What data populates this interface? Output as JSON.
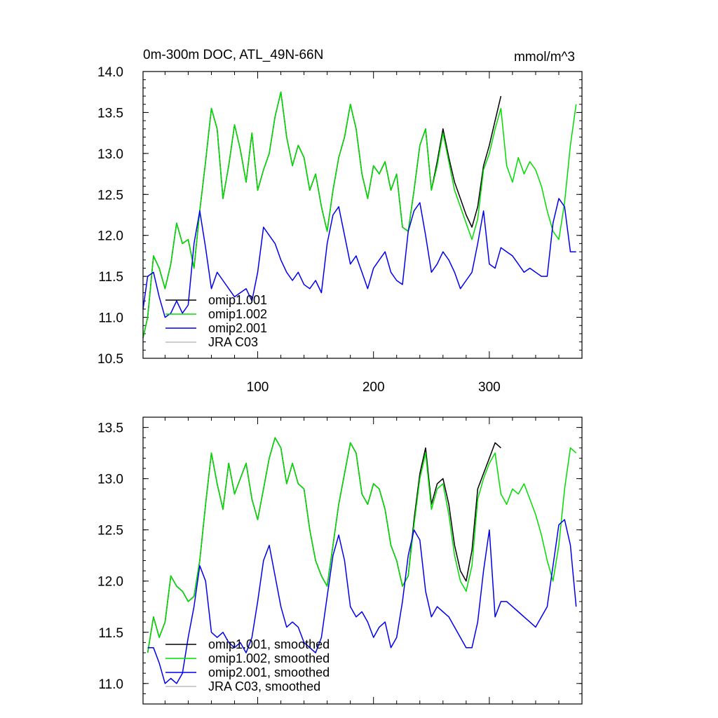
{
  "chart_data": [
    {
      "type": "line",
      "title_left": "0m-300m DOC, ATL_49N-66N",
      "title_right": "mmol/m^3",
      "xlim": [
        1,
        380
      ],
      "ylim": [
        10.5,
        14.0
      ],
      "x_tick_labels": [
        100,
        200,
        300
      ],
      "y_tick_labels": [
        "10.5",
        "11.0",
        "11.5",
        "12.0",
        "12.5",
        "13.0",
        "13.5",
        "14.0"
      ],
      "legend_position": "lower-left",
      "series": [
        {
          "name": "omip1.001",
          "color": "#000000",
          "x": [
            1,
            5,
            10,
            15,
            20,
            25,
            30,
            35,
            40,
            45,
            50,
            55,
            60,
            65,
            70,
            75,
            80,
            85,
            90,
            95,
            100,
            105,
            110,
            115,
            120,
            125,
            130,
            135,
            140,
            145,
            150,
            155,
            160,
            165,
            170,
            175,
            180,
            185,
            190,
            195,
            200,
            205,
            210,
            215,
            220,
            225,
            230,
            235,
            240,
            245,
            250,
            255,
            260,
            265,
            270,
            275,
            280,
            285,
            290,
            295,
            300,
            305,
            310
          ],
          "y": [
            10.75,
            11.0,
            11.75,
            11.6,
            11.35,
            11.65,
            12.15,
            11.9,
            11.95,
            11.6,
            12.3,
            12.9,
            13.55,
            13.3,
            12.45,
            12.85,
            13.35,
            13.05,
            12.65,
            13.25,
            12.55,
            12.8,
            13.0,
            13.45,
            13.75,
            13.2,
            12.85,
            13.1,
            12.95,
            12.55,
            12.75,
            12.35,
            12.05,
            12.55,
            12.95,
            13.2,
            13.6,
            13.3,
            12.75,
            12.45,
            12.85,
            12.75,
            12.9,
            12.55,
            12.75,
            12.1,
            12.05,
            12.55,
            13.1,
            13.3,
            12.55,
            12.9,
            13.3,
            12.95,
            12.65,
            12.45,
            12.25,
            12.1,
            12.35,
            12.85,
            13.1,
            13.4,
            13.7
          ]
        },
        {
          "name": "omip1.002",
          "color": "#00dd00",
          "x": [
            1,
            5,
            10,
            15,
            20,
            25,
            30,
            35,
            40,
            45,
            50,
            55,
            60,
            65,
            70,
            75,
            80,
            85,
            90,
            95,
            100,
            105,
            110,
            115,
            120,
            125,
            130,
            135,
            140,
            145,
            150,
            155,
            160,
            165,
            170,
            175,
            180,
            185,
            190,
            195,
            200,
            205,
            210,
            215,
            220,
            225,
            230,
            235,
            240,
            245,
            250,
            255,
            260,
            265,
            270,
            275,
            280,
            285,
            290,
            295,
            300,
            305,
            310,
            315,
            320,
            325,
            330,
            335,
            340,
            345,
            350,
            355,
            360,
            365,
            370,
            375
          ],
          "y": [
            10.75,
            11.0,
            11.75,
            11.6,
            11.35,
            11.65,
            12.15,
            11.9,
            11.95,
            11.6,
            12.3,
            12.9,
            13.55,
            13.3,
            12.45,
            12.85,
            13.35,
            13.05,
            12.65,
            13.25,
            12.55,
            12.8,
            13.0,
            13.45,
            13.75,
            13.2,
            12.85,
            13.1,
            12.95,
            12.55,
            12.75,
            12.35,
            12.05,
            12.55,
            12.95,
            13.2,
            13.6,
            13.3,
            12.75,
            12.45,
            12.85,
            12.75,
            12.9,
            12.55,
            12.75,
            12.1,
            12.05,
            12.55,
            13.1,
            13.3,
            12.55,
            12.85,
            13.25,
            12.9,
            12.55,
            12.35,
            12.15,
            11.95,
            12.2,
            12.8,
            13.0,
            13.3,
            13.55,
            12.85,
            12.65,
            12.95,
            12.75,
            12.9,
            12.8,
            12.6,
            12.3,
            12.05,
            11.95,
            12.4,
            13.1,
            13.6
          ]
        },
        {
          "name": "omip2.001",
          "color": "#0000ee",
          "x": [
            1,
            5,
            10,
            15,
            20,
            25,
            30,
            35,
            40,
            45,
            50,
            55,
            60,
            65,
            70,
            75,
            80,
            85,
            90,
            95,
            100,
            105,
            110,
            115,
            120,
            125,
            130,
            135,
            140,
            145,
            150,
            155,
            160,
            165,
            170,
            175,
            180,
            185,
            190,
            195,
            200,
            205,
            210,
            215,
            220,
            225,
            230,
            235,
            240,
            245,
            250,
            255,
            260,
            265,
            270,
            275,
            280,
            285,
            290,
            295,
            300,
            305,
            310,
            315,
            320,
            325,
            330,
            335,
            340,
            345,
            350,
            355,
            360,
            365,
            370,
            375
          ],
          "y": [
            11.1,
            11.5,
            11.55,
            11.25,
            11.0,
            11.05,
            11.2,
            11.05,
            11.15,
            11.9,
            12.3,
            11.85,
            11.35,
            11.55,
            11.45,
            11.35,
            11.25,
            11.3,
            11.35,
            11.2,
            11.55,
            12.1,
            12.0,
            11.9,
            11.7,
            11.55,
            11.45,
            11.55,
            11.4,
            11.35,
            11.45,
            11.3,
            11.9,
            12.25,
            12.35,
            12.0,
            11.65,
            11.75,
            11.55,
            11.35,
            11.6,
            11.7,
            11.8,
            11.55,
            11.45,
            11.4,
            12.05,
            12.3,
            12.4,
            12.0,
            11.55,
            11.65,
            11.8,
            11.7,
            11.55,
            11.35,
            11.45,
            11.55,
            11.9,
            12.3,
            11.65,
            11.6,
            11.85,
            11.8,
            11.75,
            11.65,
            11.55,
            11.6,
            11.55,
            11.5,
            11.5,
            12.15,
            12.45,
            12.35,
            11.8,
            11.8
          ]
        },
        {
          "name": "JRA C03",
          "color": "#bbbbbb",
          "x": [],
          "y": []
        }
      ]
    },
    {
      "type": "line",
      "xlim": [
        1,
        380
      ],
      "ylim": [
        10.8,
        13.6
      ],
      "y_tick_labels": [
        "11.0",
        "11.5",
        "12.0",
        "12.5",
        "13.0",
        "13.5"
      ],
      "legend_position": "lower-left",
      "series": [
        {
          "name": "omip1.001, smoothed",
          "color": "#000000",
          "x": [
            5,
            10,
            15,
            20,
            25,
            30,
            35,
            40,
            45,
            50,
            55,
            60,
            65,
            70,
            75,
            80,
            85,
            90,
            95,
            100,
            105,
            110,
            115,
            120,
            125,
            130,
            135,
            140,
            145,
            150,
            155,
            160,
            165,
            170,
            175,
            180,
            185,
            190,
            195,
            200,
            205,
            210,
            215,
            220,
            225,
            230,
            235,
            240,
            245,
            250,
            255,
            260,
            265,
            270,
            275,
            280,
            285,
            290,
            295,
            300,
            305,
            310
          ],
          "y": [
            11.3,
            11.65,
            11.45,
            11.6,
            12.05,
            11.95,
            11.9,
            11.8,
            11.85,
            12.2,
            12.75,
            13.25,
            12.95,
            12.7,
            13.15,
            12.85,
            13.0,
            13.15,
            12.8,
            12.6,
            12.9,
            13.2,
            13.4,
            13.3,
            12.95,
            13.15,
            12.95,
            12.9,
            12.5,
            12.2,
            12.05,
            11.95,
            12.35,
            12.75,
            13.05,
            13.35,
            13.25,
            12.85,
            12.75,
            12.95,
            12.9,
            12.7,
            12.35,
            12.2,
            11.95,
            12.05,
            12.6,
            13.05,
            13.3,
            12.75,
            12.95,
            13.0,
            12.75,
            12.35,
            12.1,
            12.0,
            12.3,
            12.9,
            13.05,
            13.2,
            13.35,
            13.3
          ]
        },
        {
          "name": "omip1.002, smoothed",
          "color": "#00dd00",
          "x": [
            5,
            10,
            15,
            20,
            25,
            30,
            35,
            40,
            45,
            50,
            55,
            60,
            65,
            70,
            75,
            80,
            85,
            90,
            95,
            100,
            105,
            110,
            115,
            120,
            125,
            130,
            135,
            140,
            145,
            150,
            155,
            160,
            165,
            170,
            175,
            180,
            185,
            190,
            195,
            200,
            205,
            210,
            215,
            220,
            225,
            230,
            235,
            240,
            245,
            250,
            255,
            260,
            265,
            270,
            275,
            280,
            285,
            290,
            295,
            300,
            305,
            310,
            315,
            320,
            325,
            330,
            335,
            340,
            345,
            350,
            355,
            360,
            365,
            370,
            375
          ],
          "y": [
            11.3,
            11.65,
            11.45,
            11.6,
            12.05,
            11.95,
            11.9,
            11.8,
            11.85,
            12.2,
            12.75,
            13.25,
            12.95,
            12.7,
            13.15,
            12.85,
            13.0,
            13.15,
            12.8,
            12.6,
            12.9,
            13.2,
            13.4,
            13.3,
            12.95,
            13.15,
            12.95,
            12.9,
            12.5,
            12.2,
            12.05,
            11.95,
            12.35,
            12.75,
            13.05,
            13.35,
            13.25,
            12.85,
            12.75,
            12.95,
            12.9,
            12.7,
            12.35,
            12.2,
            11.95,
            12.05,
            12.55,
            13.0,
            13.25,
            12.7,
            12.9,
            12.95,
            12.65,
            12.25,
            12.0,
            11.9,
            12.15,
            12.8,
            13.0,
            13.15,
            13.25,
            12.85,
            12.75,
            12.9,
            12.85,
            12.95,
            12.8,
            12.65,
            12.45,
            12.2,
            12.0,
            12.35,
            12.9,
            13.3,
            13.25
          ]
        },
        {
          "name": "omip2.001, smoothed",
          "color": "#0000ee",
          "x": [
            5,
            10,
            15,
            20,
            25,
            30,
            35,
            40,
            45,
            50,
            55,
            60,
            65,
            70,
            75,
            80,
            85,
            90,
            95,
            100,
            105,
            110,
            115,
            120,
            125,
            130,
            135,
            140,
            145,
            150,
            155,
            160,
            165,
            170,
            175,
            180,
            185,
            190,
            195,
            200,
            205,
            210,
            215,
            220,
            225,
            230,
            235,
            240,
            245,
            250,
            255,
            260,
            265,
            270,
            275,
            280,
            285,
            290,
            295,
            300,
            305,
            310,
            315,
            320,
            325,
            330,
            335,
            340,
            345,
            350,
            355,
            360,
            365,
            370,
            375
          ],
          "y": [
            11.35,
            11.35,
            11.2,
            11.0,
            11.05,
            11.0,
            11.1,
            11.45,
            11.75,
            12.15,
            12.0,
            11.5,
            11.45,
            11.5,
            11.4,
            11.35,
            11.4,
            11.3,
            11.45,
            11.8,
            12.2,
            12.35,
            12.05,
            11.75,
            11.55,
            11.6,
            11.55,
            11.4,
            11.35,
            11.3,
            11.45,
            11.85,
            12.25,
            12.45,
            12.2,
            11.75,
            11.65,
            11.7,
            11.6,
            11.45,
            11.55,
            11.6,
            11.35,
            11.45,
            11.8,
            12.25,
            12.5,
            12.4,
            11.9,
            11.65,
            11.75,
            11.7,
            11.65,
            11.55,
            11.45,
            11.35,
            11.35,
            11.6,
            12.1,
            12.5,
            11.65,
            11.8,
            11.8,
            11.75,
            11.7,
            11.65,
            11.6,
            11.55,
            11.65,
            11.75,
            12.15,
            12.55,
            12.6,
            12.35,
            11.75
          ]
        },
        {
          "name": "JRA C03, smoothed",
          "color": "#bbbbbb",
          "x": [],
          "y": []
        }
      ]
    }
  ]
}
